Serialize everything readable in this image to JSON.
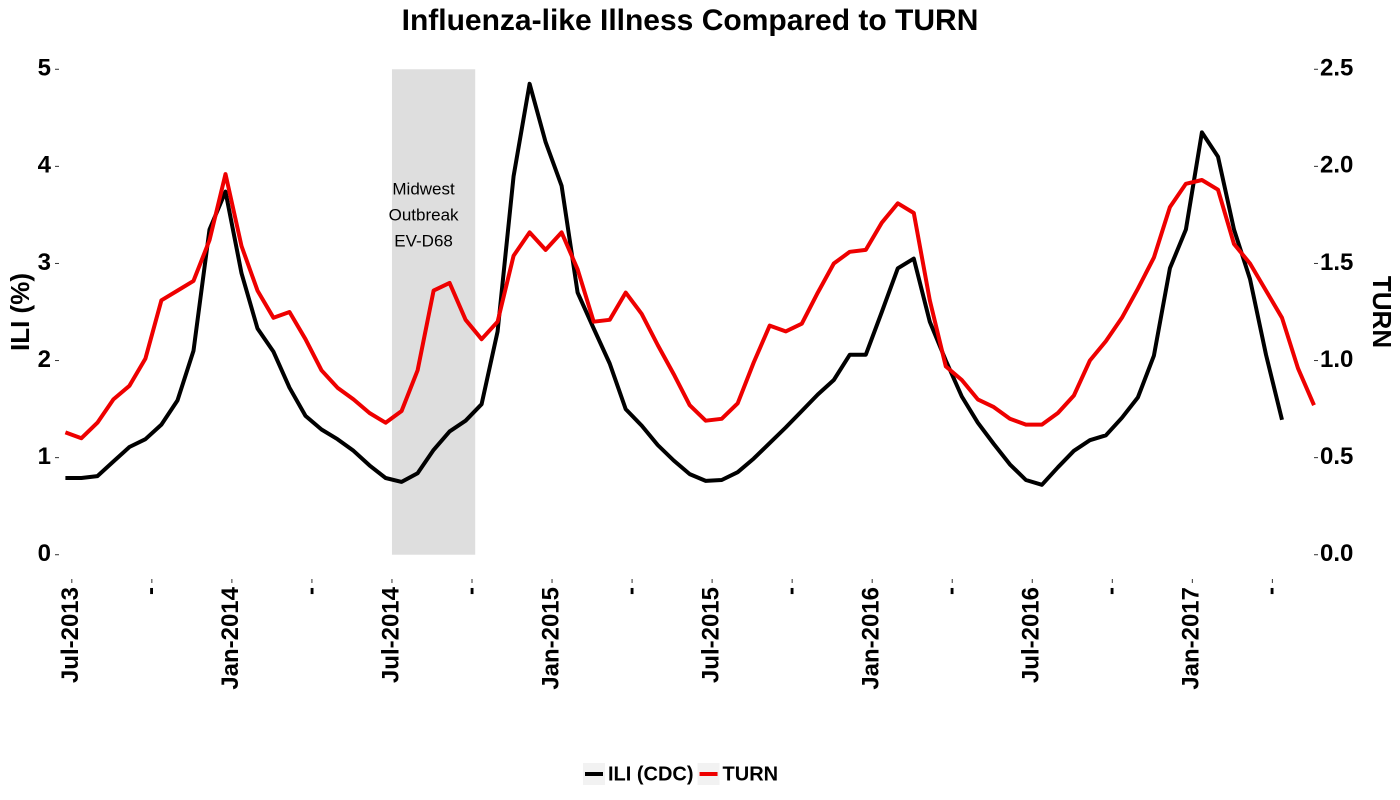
{
  "chart_data": {
    "type": "line",
    "title": "Influenza-like Illness Compared to TURN",
    "y_label": "ILI (%)",
    "y2_label": "TURN",
    "xlim": [
      2013.46,
      2017.38
    ],
    "ylim": [
      -0.25,
      5.25
    ],
    "y2lim": [
      -0.125,
      2.625
    ],
    "yticks": [
      0,
      1,
      2,
      3,
      4,
      5
    ],
    "y2ticks": [
      {
        "value": 0,
        "label": "0.0"
      },
      {
        "value": 0.5,
        "label": "0.5"
      },
      {
        "value": 1,
        "label": "1.0"
      },
      {
        "value": 1.5,
        "label": "1.5"
      },
      {
        "value": 2,
        "label": "2.0"
      },
      {
        "value": 2.5,
        "label": "2.5"
      }
    ],
    "xticks": [
      {
        "value": 2013.5,
        "label": "Jul-2013"
      },
      {
        "value": 2013.75,
        "label": "-"
      },
      {
        "value": 2014.0,
        "label": "Jan-2014"
      },
      {
        "value": 2014.25,
        "label": "-"
      },
      {
        "value": 2014.5,
        "label": "Jul-2014"
      },
      {
        "value": 2014.75,
        "label": "-"
      },
      {
        "value": 2015.0,
        "label": "Jan-2015"
      },
      {
        "value": 2015.25,
        "label": "-"
      },
      {
        "value": 2015.5,
        "label": "Jul-2015"
      },
      {
        "value": 2015.75,
        "label": "-"
      },
      {
        "value": 2016.0,
        "label": "Jan-2016"
      },
      {
        "value": 2016.25,
        "label": "-"
      },
      {
        "value": 2016.5,
        "label": "Jul-2016"
      },
      {
        "value": 2016.75,
        "label": "-"
      },
      {
        "value": 2017.0,
        "label": "Jan-2017"
      },
      {
        "value": 2017.25,
        "label": "-"
      }
    ],
    "shade": {
      "x": [
        2014.5,
        2014.76
      ],
      "y": [
        0,
        5
      ],
      "color": "#dedede",
      "label": [
        "Midwest",
        "Outbreak",
        "EV-D68"
      ]
    },
    "x": [
      2013.48,
      2013.53,
      2013.58,
      2013.63,
      2013.68,
      2013.73,
      2013.78,
      2013.83,
      2013.88,
      2013.93,
      2013.98,
      2014.03,
      2014.08,
      2014.13,
      2014.18,
      2014.23,
      2014.28,
      2014.33,
      2014.38,
      2014.43,
      2014.48,
      2014.53,
      2014.58,
      2014.63,
      2014.68,
      2014.73,
      2014.78,
      2014.83,
      2014.88,
      2014.93,
      2014.98,
      2015.03,
      2015.08,
      2015.13,
      2015.18,
      2015.23,
      2015.28,
      2015.33,
      2015.38,
      2015.43,
      2015.48,
      2015.53,
      2015.58,
      2015.63,
      2015.68,
      2015.73,
      2015.78,
      2015.83,
      2015.88,
      2015.93,
      2015.98,
      2016.03,
      2016.08,
      2016.13,
      2016.18,
      2016.23,
      2016.28,
      2016.33,
      2016.38,
      2016.43,
      2016.48,
      2016.53,
      2016.58,
      2016.63,
      2016.68,
      2016.73,
      2016.78,
      2016.83,
      2016.88,
      2016.93,
      2016.98,
      2017.03,
      2017.08,
      2017.13,
      2017.18,
      2017.23,
      2017.28,
      2017.33,
      2017.38
    ],
    "series": [
      {
        "name": "ILI (CDC)",
        "color": "#000000",
        "values": [
          0.79,
          0.79,
          0.81,
          0.96,
          1.11,
          1.19,
          1.34,
          1.59,
          2.1,
          3.35,
          3.74,
          2.9,
          2.33,
          2.09,
          1.72,
          1.43,
          1.29,
          1.19,
          1.07,
          0.92,
          0.79,
          0.75,
          0.84,
          1.08,
          1.27,
          1.38,
          1.55,
          2.3,
          3.9,
          4.85,
          4.25,
          3.8,
          2.7,
          2.33,
          1.97,
          1.5,
          1.33,
          1.13,
          0.97,
          0.83,
          0.76,
          0.77,
          0.85,
          0.99,
          1.15,
          1.31,
          1.48,
          1.65,
          1.8,
          2.06,
          2.06,
          2.5,
          2.95,
          3.05,
          2.4,
          2.0,
          1.63,
          1.36,
          1.14,
          0.93,
          0.77,
          0.72,
          0.9,
          1.07,
          1.18,
          1.23,
          1.41,
          1.62,
          2.05,
          2.95,
          3.35,
          4.35,
          4.1,
          3.35,
          2.84,
          2.06,
          1.39,
          null,
          null
        ]
      },
      {
        "name": "TURN",
        "color": "#ee0000",
        "axis": "y2",
        "values": [
          0.63,
          0.6,
          0.68,
          0.8,
          0.87,
          1.01,
          1.31,
          1.36,
          1.41,
          1.62,
          1.96,
          1.59,
          1.36,
          1.22,
          1.25,
          1.11,
          0.95,
          0.86,
          0.8,
          0.73,
          0.68,
          0.74,
          0.95,
          1.36,
          1.4,
          1.21,
          1.11,
          1.2,
          1.54,
          1.66,
          1.57,
          1.66,
          1.47,
          1.2,
          1.21,
          1.35,
          1.24,
          1.08,
          0.93,
          0.77,
          0.69,
          0.7,
          0.78,
          0.99,
          1.18,
          1.15,
          1.19,
          1.35,
          1.5,
          1.56,
          1.57,
          1.71,
          1.81,
          1.76,
          1.31,
          0.97,
          0.9,
          0.8,
          0.76,
          0.7,
          0.67,
          0.67,
          0.73,
          0.82,
          1.0,
          1.1,
          1.22,
          1.37,
          1.53,
          1.79,
          1.91,
          1.93,
          1.88,
          1.6,
          1.5,
          1.36,
          1.22,
          0.96,
          0.77
        ]
      }
    ]
  }
}
